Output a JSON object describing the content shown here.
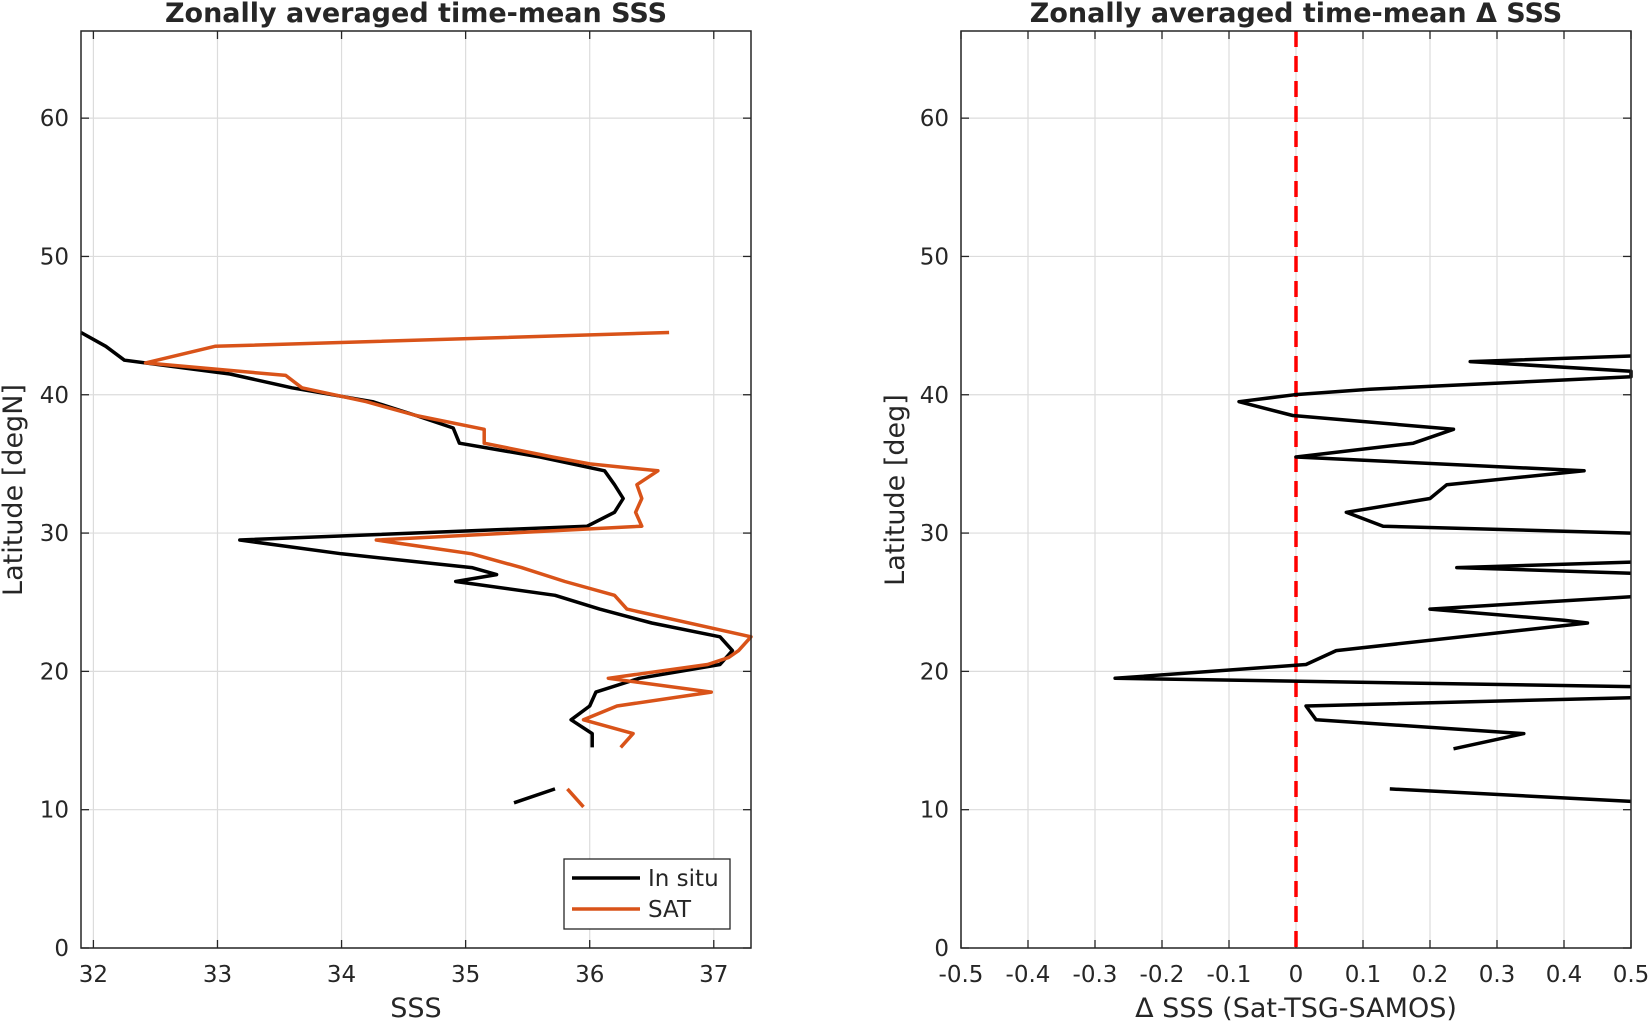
{
  "chart_data": [
    {
      "type": "line",
      "title": "Zonally averaged time-mean SSS",
      "xlabel": "SSS",
      "ylabel": "Latitude [degN]",
      "xlim": [
        31.9,
        37.3
      ],
      "ylim": [
        0,
        66.3
      ],
      "xticks": [
        32,
        33,
        34,
        35,
        36,
        37
      ],
      "yticks": [
        0,
        10,
        20,
        30,
        40,
        50,
        60
      ],
      "grid": true,
      "legend_position": "bottom-right",
      "colors": {
        "In situ": "#000000",
        "SAT": "#D95319"
      },
      "series": [
        {
          "name": "In situ",
          "segments": [
            [
              [
                31.9,
                44.5
              ],
              [
                32.1,
                43.5
              ],
              [
                32.25,
                42.5
              ],
              [
                33.1,
                41.5
              ],
              [
                33.6,
                40.5
              ],
              [
                34.25,
                39.5
              ],
              [
                34.6,
                38.5
              ],
              [
                34.9,
                37.6
              ],
              [
                34.95,
                36.5
              ],
              [
                35.6,
                35.5
              ],
              [
                36.12,
                34.5
              ],
              [
                36.2,
                33.5
              ],
              [
                36.27,
                32.5
              ],
              [
                36.2,
                31.5
              ],
              [
                35.98,
                30.5
              ],
              [
                33.18,
                29.5
              ],
              [
                34.0,
                28.5
              ],
              [
                35.05,
                27.5
              ],
              [
                35.25,
                27.0
              ],
              [
                34.92,
                26.5
              ],
              [
                35.72,
                25.5
              ],
              [
                36.08,
                24.5
              ],
              [
                36.5,
                23.5
              ],
              [
                37.05,
                22.5
              ],
              [
                37.15,
                21.5
              ],
              [
                37.05,
                20.5
              ],
              [
                36.4,
                19.5
              ],
              [
                36.05,
                18.5
              ],
              [
                36.0,
                17.5
              ],
              [
                35.85,
                16.5
              ],
              [
                36.02,
                15.5
              ],
              [
                36.02,
                14.5
              ]
            ],
            [
              [
                35.39,
                10.5
              ],
              [
                35.72,
                11.5
              ]
            ]
          ]
        },
        {
          "name": "SAT",
          "segments": [
            [
              [
                36.64,
                44.5
              ],
              [
                32.98,
                43.5
              ],
              [
                32.42,
                42.3
              ],
              [
                33.55,
                41.4
              ],
              [
                33.68,
                40.5
              ],
              [
                34.2,
                39.5
              ],
              [
                34.6,
                38.5
              ],
              [
                35.15,
                37.5
              ],
              [
                35.15,
                36.5
              ],
              [
                35.7,
                35.5
              ],
              [
                36.0,
                35.0
              ],
              [
                36.55,
                34.5
              ],
              [
                36.38,
                33.5
              ],
              [
                36.42,
                32.5
              ],
              [
                36.37,
                31.5
              ],
              [
                36.42,
                30.5
              ],
              [
                34.28,
                29.5
              ],
              [
                35.05,
                28.5
              ],
              [
                35.45,
                27.5
              ],
              [
                35.8,
                26.5
              ],
              [
                36.2,
                25.5
              ],
              [
                36.3,
                24.5
              ],
              [
                37.3,
                22.5
              ],
              [
                37.2,
                21.5
              ],
              [
                37.12,
                21.0
              ],
              [
                36.95,
                20.5
              ],
              [
                36.15,
                19.5
              ],
              [
                36.98,
                18.5
              ],
              [
                36.22,
                17.5
              ],
              [
                35.95,
                16.5
              ],
              [
                36.35,
                15.5
              ],
              [
                36.25,
                14.5
              ]
            ],
            [
              [
                35.82,
                11.5
              ],
              [
                35.95,
                10.2
              ]
            ]
          ]
        }
      ]
    },
    {
      "type": "line",
      "title": "Zonally averaged time-mean Δ SSS",
      "xlabel": "Δ SSS (Sat-TSG-SAMOS)",
      "ylabel": "Latitude [deg]",
      "xlim": [
        -0.5,
        0.5
      ],
      "ylim": [
        0,
        66.3
      ],
      "xticks": [
        -0.5,
        -0.4,
        -0.3,
        -0.2,
        -0.1,
        0,
        0.1,
        0.2,
        0.3,
        0.4,
        0.5
      ],
      "yticks": [
        0,
        10,
        20,
        30,
        40,
        50,
        60
      ],
      "grid": true,
      "reference_line": {
        "x": 0,
        "color": "#FF0000",
        "style": "dashed"
      },
      "series": [
        {
          "name": "",
          "color": "#000000",
          "segments": [
            [
              [
                0.5,
                42.8
              ],
              [
                0.26,
                42.4
              ],
              [
                0.5,
                41.7
              ],
              [
                0.5,
                41.3
              ],
              [
                0.11,
                40.4
              ],
              [
                -0.003,
                40.0
              ],
              [
                -0.085,
                39.5
              ],
              [
                -0.005,
                38.5
              ],
              [
                0.235,
                37.5
              ],
              [
                0.175,
                36.5
              ],
              [
                0.0,
                35.5
              ],
              [
                0.43,
                34.5
              ],
              [
                0.225,
                33.5
              ],
              [
                0.2,
                32.5
              ],
              [
                0.075,
                31.5
              ],
              [
                0.13,
                30.5
              ],
              [
                0.5,
                30.0
              ]
            ],
            [
              [
                0.5,
                27.9
              ],
              [
                0.24,
                27.5
              ],
              [
                0.5,
                27.1
              ]
            ],
            [
              [
                0.5,
                25.4
              ],
              [
                0.2,
                24.5
              ],
              [
                0.4,
                23.7
              ],
              [
                0.435,
                23.5
              ],
              [
                0.06,
                21.5
              ],
              [
                0.015,
                20.5
              ],
              [
                -0.27,
                19.5
              ],
              [
                0.5,
                18.9
              ]
            ],
            [
              [
                0.5,
                18.1
              ],
              [
                0.015,
                17.5
              ],
              [
                0.03,
                16.5
              ],
              [
                0.34,
                15.5
              ],
              [
                0.235,
                14.4
              ]
            ],
            [
              [
                0.5,
                10.6
              ],
              [
                0.14,
                11.5
              ]
            ]
          ]
        }
      ]
    }
  ],
  "legend": {
    "items": [
      {
        "label": "In situ"
      },
      {
        "label": "SAT"
      }
    ]
  }
}
